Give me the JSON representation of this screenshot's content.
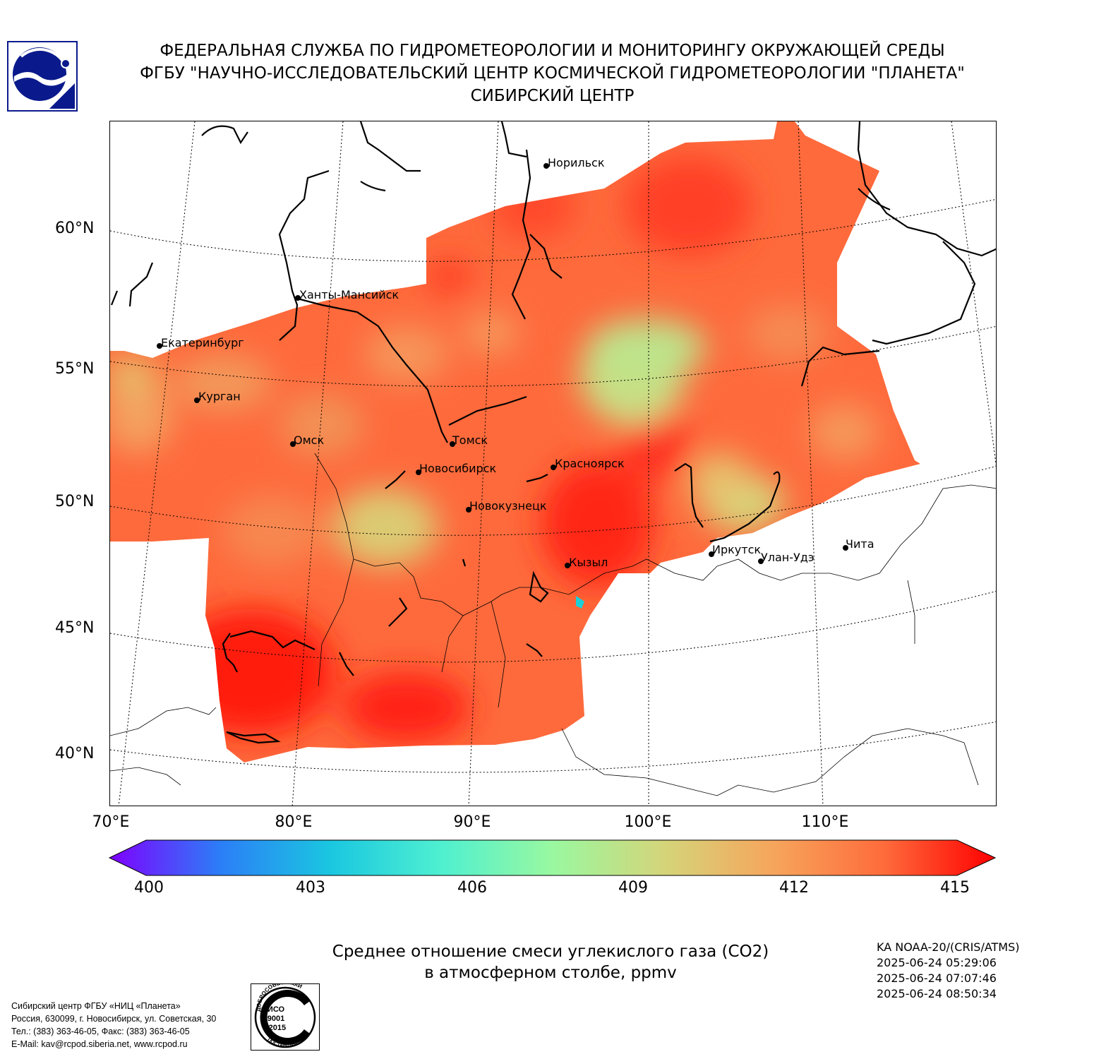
{
  "header": {
    "line1": "ФЕДЕРАЛЬНАЯ СЛУЖБА ПО ГИДРОМЕТЕОРОЛОГИИ И МОНИТОРИНГУ ОКРУЖАЮЩЕЙ СРЕДЫ",
    "line2": "ФГБУ \"НАУЧНО-ИССЛЕДОВАТЕЛЬСКИЙ ЦЕНТР КОСМИЧЕСКОЙ ГИДРОМЕТЕОРОЛОГИИ \"ПЛАНЕТА\"",
    "line3": "СИБИРСКИЙ ЦЕНТР"
  },
  "map": {
    "lat_labels": [
      "60°N",
      "55°N",
      "50°N",
      "45°N",
      "40°N"
    ],
    "lon_labels": [
      "70°E",
      "80°E",
      "90°E",
      "100°E",
      "110°E"
    ],
    "cities": {
      "norilsk": "Норильск",
      "khanty": "Ханты-Мансийск",
      "ekb": "Екатеринбург",
      "kurgan": "Курган",
      "omsk": "Омск",
      "tomsk": "Томск",
      "nsk": "Новосибирск",
      "krsk": "Красноярск",
      "nkz": "Новокузнецк",
      "kyzyl": "Кызыл",
      "irkutsk": "Иркутск",
      "ulanude": "Улан-Удэ",
      "chita": "Чита"
    }
  },
  "colorbar": {
    "ticks": [
      "400",
      "403",
      "406",
      "409",
      "412",
      "415"
    ],
    "colors": [
      "#7f00ff",
      "#2c7ef7",
      "#1ac7e0",
      "#4ff0d0",
      "#99f8a0",
      "#d4d57a",
      "#f6a55c",
      "#fe6b3b",
      "#ff0000"
    ]
  },
  "caption": {
    "line1": "Среднее отношение смеси углекислого газа (CO2)",
    "line2": "в атмосферном столбе, ppmv"
  },
  "satellite": {
    "name": "KA NOAA-20/(CRIS/ATMS)",
    "t1": "2025-06-24 05:29:06",
    "t2": "2025-06-24 07:07:46",
    "t3": "2025-06-24 08:50:34"
  },
  "footer": {
    "org": "Сибирский центр ФГБУ «НИЦ «Планета»",
    "address": "Россия, 630099, г. Новосибирск, ул. Советская, 30",
    "phones": "Тел.: (383) 363-46-05, Факс: (383) 363-46-05",
    "email": "E-Mail: kav@rcpod.siberia.net, www.rcpod.ru"
  },
  "iso_stamp": {
    "top": "ДОБРОСОВЕСТНЫЙ",
    "l1": "ИСО",
    "l2": "9001",
    "l3": "-2015",
    "bottom": "ПОСТАВЩИК"
  }
}
